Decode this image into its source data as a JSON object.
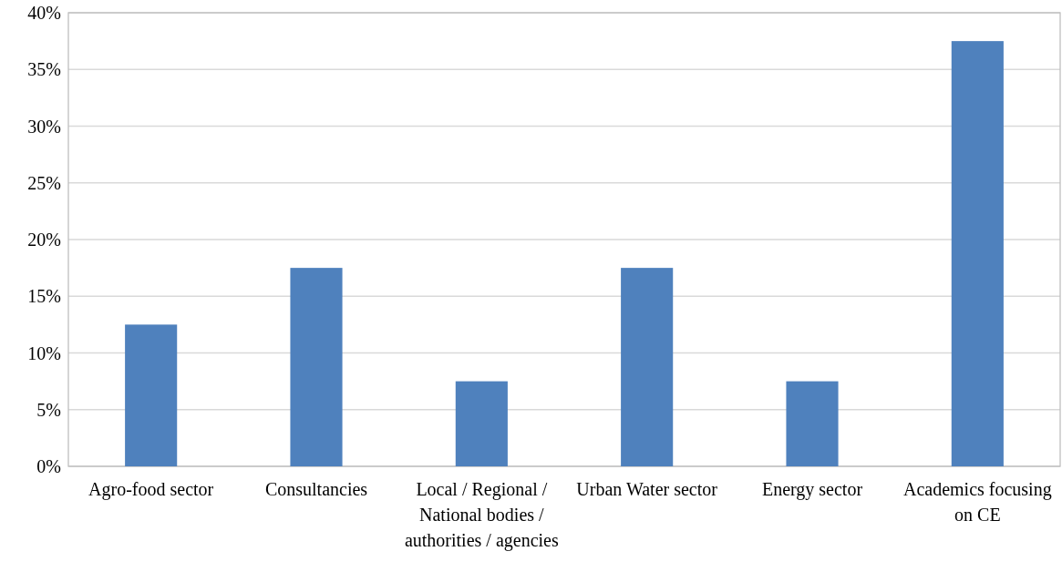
{
  "chart_data": {
    "type": "bar",
    "categories": [
      "Agro-food sector",
      "Consultancies",
      "Local / Regional / National bodies / authorities / agencies",
      "Urban Water sector",
      "Energy sector",
      "Academics focusing on CE"
    ],
    "values": [
      12.5,
      17.5,
      7.5,
      17.5,
      7.5,
      37.5
    ],
    "color": "#4f81bd",
    "ylim": [
      0,
      40
    ],
    "yticks": [
      {
        "value": 0,
        "label": "0%"
      },
      {
        "value": 5,
        "label": "5%"
      },
      {
        "value": 10,
        "label": "10%"
      },
      {
        "value": 15,
        "label": "15%"
      },
      {
        "value": 20,
        "label": "20%"
      },
      {
        "value": 25,
        "label": "25%"
      },
      {
        "value": 30,
        "label": "30%"
      },
      {
        "value": 35,
        "label": "35%"
      },
      {
        "value": 40,
        "label": "40%"
      }
    ],
    "grid": "y"
  }
}
